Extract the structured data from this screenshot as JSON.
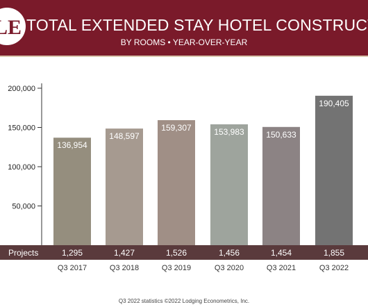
{
  "header": {
    "logo_text": "LE",
    "title": "TOTAL EXTENDED STAY HOTEL CONSTRUCTION PIPELINE",
    "subtitle": "BY ROOMS • YEAR-OVER-YEAR"
  },
  "colors": {
    "header_bg": "#7a1a2a",
    "projects_band": "#5a3a3c",
    "axis": "#333333"
  },
  "chart_data": {
    "type": "bar",
    "title": "TOTAL EXTENDED STAY HOTEL CONSTRUCTION PIPELINE",
    "subtitle": "BY ROOMS • YEAR-OVER-YEAR",
    "categories": [
      "Q3 2017",
      "Q3 2018",
      "Q3 2019",
      "Q3 2020",
      "Q3 2021",
      "Q3 2022"
    ],
    "values": [
      136954,
      148597,
      159307,
      153983,
      150633,
      190405
    ],
    "value_labels": [
      "136,954",
      "148,597",
      "159,307",
      "153,983",
      "150,633",
      "190,405"
    ],
    "bar_colors": [
      "#958e7e",
      "#a69a90",
      "#a08f86",
      "#9ea49d",
      "#8c8384",
      "#737373"
    ],
    "y_ticks": [
      50000,
      100000,
      150000,
      200000
    ],
    "y_tick_labels": [
      "50,000",
      "100,000",
      "150,000",
      "200,000"
    ],
    "ylim": [
      0,
      200000
    ],
    "grid": false,
    "projects_label": "Projects",
    "projects": [
      "1,295",
      "1,427",
      "1,526",
      "1,456",
      "1,454",
      "1,855"
    ]
  },
  "footer": "Q3 2022 statistics ©2022 Lodging Econometrics, Inc."
}
